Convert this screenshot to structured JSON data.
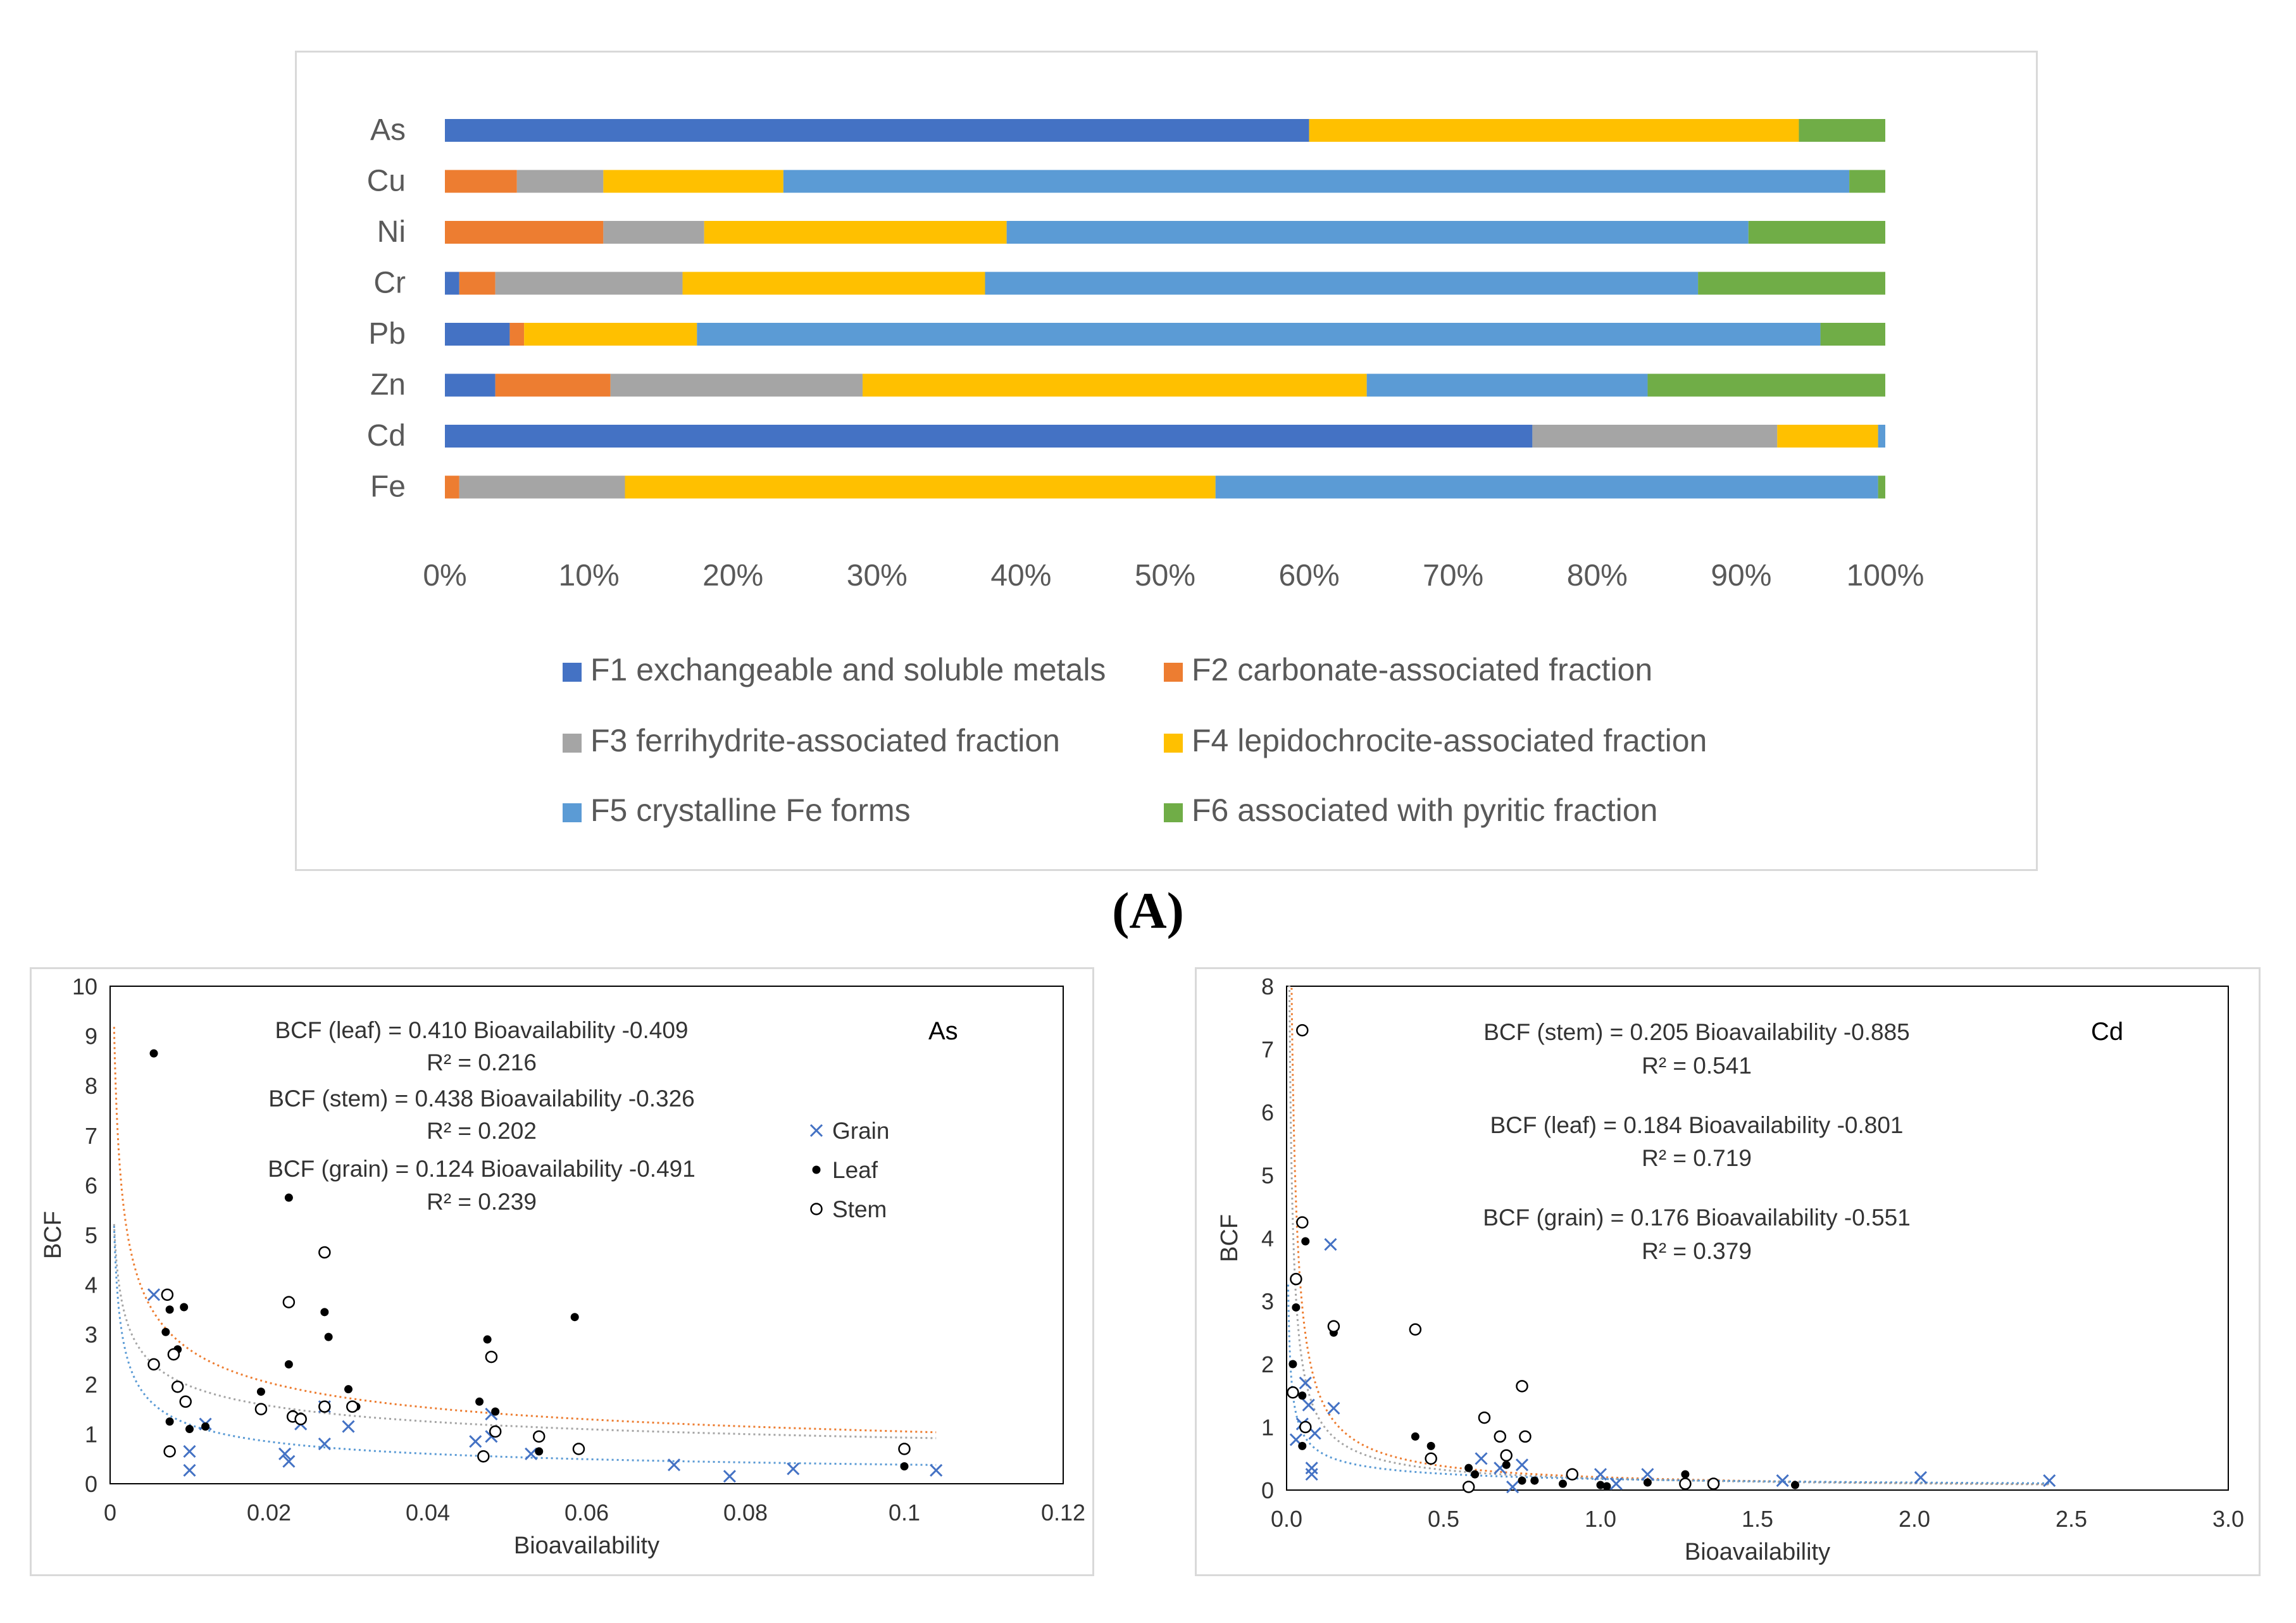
{
  "caption": "(A)",
  "chart_data": [
    {
      "type": "bar",
      "stacked": "100%",
      "orientation": "horizontal",
      "categories": [
        "As",
        "Cu",
        "Ni",
        "Cr",
        "Pb",
        "Zn",
        "Cd",
        "Fe"
      ],
      "series": [
        {
          "name": "F1 exchangeable and soluble metals",
          "color": "#4472c4",
          "values": [
            60,
            0,
            0,
            1,
            4.5,
            3.5,
            75.5,
            0
          ]
        },
        {
          "name": "F2 carbonate-associated fraction",
          "color": "#ed7d31",
          "values": [
            0,
            5,
            11,
            2.5,
            1,
            8,
            0,
            1
          ]
        },
        {
          "name": "F3 ferrihydrite-associated fraction",
          "color": "#a5a5a5",
          "values": [
            0,
            6,
            7,
            13,
            0,
            17.5,
            17,
            11.5
          ]
        },
        {
          "name": "F4 lepidochrocite-associated fraction",
          "color": "#ffc000",
          "values": [
            34,
            12.5,
            21,
            21,
            12,
            35,
            7,
            41
          ]
        },
        {
          "name": "F5 crystalline Fe forms",
          "color": "#5b9bd5",
          "values": [
            0,
            74,
            51.5,
            49.5,
            78,
            19.5,
            0.5,
            46
          ]
        },
        {
          "name": "F6 associated with pyritic fraction",
          "color": "#70ad47",
          "values": [
            6,
            2.5,
            9.5,
            13,
            4.5,
            16.5,
            0,
            0.5
          ]
        }
      ],
      "xlim": [
        0,
        100
      ],
      "xticks": [
        "0%",
        "10%",
        "20%",
        "30%",
        "40%",
        "50%",
        "60%",
        "70%",
        "80%",
        "90%",
        "100%"
      ],
      "legend": "bottom"
    },
    {
      "type": "scatter",
      "label": "As",
      "xlabel": "Bioavailability",
      "ylabel": "BCF",
      "xlim": [
        0,
        0.12
      ],
      "ylim": [
        0,
        10
      ],
      "xticks": [
        "0",
        "0.02",
        "0.04",
        "0.06",
        "0.08",
        "0.1",
        "0.12"
      ],
      "yticks": [
        "0",
        "1",
        "2",
        "3",
        "4",
        "5",
        "6",
        "7",
        "8",
        "9",
        "10"
      ],
      "legend_entries": [
        "Grain",
        "Leaf",
        "Stem"
      ],
      "annotations": [
        "BCF (leaf) = 0.410 Bioavailability -0.409",
        "R² = 0.216",
        "BCF (stem) = 0.438 Bioavailability -0.326",
        "R² = 0.202",
        "BCF (grain) = 0.124 Bioavailability -0.491",
        "R² = 0.239"
      ],
      "series": [
        {
          "name": "Grain",
          "marker": "x",
          "color": "#4472c4",
          "points": [
            [
              0.0055,
              3.8
            ],
            [
              0.01,
              0.65
            ],
            [
              0.01,
              0.27
            ],
            [
              0.012,
              1.2
            ],
            [
              0.022,
              0.6
            ],
            [
              0.0225,
              0.45
            ],
            [
              0.024,
              1.2
            ],
            [
              0.027,
              1.55
            ],
            [
              0.027,
              0.8
            ],
            [
              0.03,
              1.15
            ],
            [
              0.046,
              0.85
            ],
            [
              0.048,
              0.95
            ],
            [
              0.048,
              1.4
            ],
            [
              0.053,
              0.6
            ],
            [
              0.071,
              0.38
            ],
            [
              0.078,
              0.15
            ],
            [
              0.086,
              0.3
            ],
            [
              0.104,
              0.27
            ]
          ]
        },
        {
          "name": "Leaf",
          "marker": "dot",
          "color": "#000000",
          "points": [
            [
              0.0055,
              8.65
            ],
            [
              0.007,
              3.05
            ],
            [
              0.0075,
              3.5
            ],
            [
              0.0075,
              1.25
            ],
            [
              0.0085,
              2.7
            ],
            [
              0.0093,
              3.55
            ],
            [
              0.01,
              1.1
            ],
            [
              0.012,
              1.15
            ],
            [
              0.019,
              1.85
            ],
            [
              0.0225,
              5.75
            ],
            [
              0.0225,
              2.4
            ],
            [
              0.023,
              1.4
            ],
            [
              0.024,
              1.35
            ],
            [
              0.027,
              3.45
            ],
            [
              0.0275,
              2.95
            ],
            [
              0.03,
              1.9
            ],
            [
              0.031,
              1.55
            ],
            [
              0.0465,
              1.65
            ],
            [
              0.0475,
              2.9
            ],
            [
              0.0485,
              1.45
            ],
            [
              0.054,
              0.65
            ],
            [
              0.0585,
              3.35
            ],
            [
              0.1,
              0.35
            ]
          ]
        },
        {
          "name": "Stem",
          "marker": "circle",
          "color": "#000000",
          "points": [
            [
              0.0055,
              2.4
            ],
            [
              0.0072,
              3.8
            ],
            [
              0.0075,
              0.65
            ],
            [
              0.008,
              2.6
            ],
            [
              0.0085,
              1.95
            ],
            [
              0.0095,
              1.65
            ],
            [
              0.019,
              1.5
            ],
            [
              0.0225,
              3.65
            ],
            [
              0.023,
              1.35
            ],
            [
              0.024,
              1.3
            ],
            [
              0.027,
              4.65
            ],
            [
              0.027,
              1.55
            ],
            [
              0.0305,
              1.55
            ],
            [
              0.047,
              0.55
            ],
            [
              0.048,
              2.55
            ],
            [
              0.0485,
              1.05
            ],
            [
              0.054,
              0.95
            ],
            [
              0.059,
              0.7
            ],
            [
              0.1,
              0.7
            ]
          ]
        }
      ],
      "fits": [
        {
          "name": "leaf",
          "a": 0.41,
          "b": -0.409,
          "color": "#ed7d31"
        },
        {
          "name": "stem",
          "a": 0.438,
          "b": -0.326,
          "color": "#a5a5a5"
        },
        {
          "name": "grain",
          "a": 0.124,
          "b": -0.491,
          "color": "#5b9bd5"
        }
      ],
      "fit_range": [
        0.0005,
        0.104
      ]
    },
    {
      "type": "scatter",
      "label": "Cd",
      "xlabel": "Bioavailability",
      "ylabel": "BCF",
      "xlim": [
        0,
        3.0
      ],
      "ylim": [
        0,
        8
      ],
      "xticks": [
        "0.0",
        "0.5",
        "1.0",
        "1.5",
        "2.0",
        "2.5",
        "3.0"
      ],
      "yticks": [
        "0",
        "1",
        "2",
        "3",
        "4",
        "5",
        "6",
        "7",
        "8"
      ],
      "annotations": [
        "BCF (stem) = 0.205 Bioavailability -0.885",
        "R² = 0.541",
        "BCF (leaf) = 0.184 Bioavailability -0.801",
        "R² = 0.719",
        "BCF (grain) = 0.176 Bioavailability -0.551",
        "R² = 0.379"
      ],
      "series": [
        {
          "name": "Grain",
          "marker": "x",
          "color": "#4472c4",
          "points": [
            [
              0.03,
              0.8
            ],
            [
              0.05,
              1.05
            ],
            [
              0.06,
              1.7
            ],
            [
              0.07,
              1.35
            ],
            [
              0.08,
              0.35
            ],
            [
              0.08,
              0.25
            ],
            [
              0.09,
              0.9
            ],
            [
              0.14,
              3.9
            ],
            [
              0.15,
              1.3
            ],
            [
              0.62,
              0.5
            ],
            [
              0.68,
              0.35
            ],
            [
              0.72,
              0.05
            ],
            [
              0.75,
              0.4
            ],
            [
              1.0,
              0.25
            ],
            [
              1.05,
              0.1
            ],
            [
              1.15,
              0.25
            ],
            [
              1.58,
              0.15
            ],
            [
              2.02,
              0.2
            ],
            [
              2.43,
              0.15
            ]
          ]
        },
        {
          "name": "Leaf",
          "marker": "dot",
          "color": "#000000",
          "points": [
            [
              0.02,
              2.0
            ],
            [
              0.03,
              2.9
            ],
            [
              0.05,
              1.5
            ],
            [
              0.05,
              0.7
            ],
            [
              0.06,
              3.95
            ],
            [
              0.15,
              2.5
            ],
            [
              0.41,
              0.85
            ],
            [
              0.46,
              0.7
            ],
            [
              0.58,
              0.35
            ],
            [
              0.6,
              0.25
            ],
            [
              0.7,
              0.4
            ],
            [
              0.75,
              0.15
            ],
            [
              0.79,
              0.15
            ],
            [
              0.88,
              0.1
            ],
            [
              1.0,
              0.08
            ],
            [
              1.02,
              0.06
            ],
            [
              1.15,
              0.12
            ],
            [
              1.27,
              0.25
            ],
            [
              1.62,
              0.08
            ]
          ]
        },
        {
          "name": "Stem",
          "marker": "circle",
          "color": "#000000",
          "points": [
            [
              0.02,
              1.55
            ],
            [
              0.03,
              3.35
            ],
            [
              0.05,
              7.3
            ],
            [
              0.05,
              4.25
            ],
            [
              0.06,
              1.0
            ],
            [
              0.15,
              2.6
            ],
            [
              0.41,
              2.55
            ],
            [
              0.46,
              0.5
            ],
            [
              0.58,
              0.05
            ],
            [
              0.63,
              1.15
            ],
            [
              0.68,
              0.85
            ],
            [
              0.7,
              0.55
            ],
            [
              0.75,
              1.65
            ],
            [
              0.76,
              0.85
            ],
            [
              0.91,
              0.25
            ],
            [
              1.27,
              0.1
            ],
            [
              1.36,
              0.1
            ]
          ]
        }
      ],
      "fits": [
        {
          "name": "stem",
          "a": 0.205,
          "b": -0.885,
          "color": "#ed7d31"
        },
        {
          "name": "leaf",
          "a": 0.184,
          "b": -0.801,
          "color": "#a5a5a5"
        },
        {
          "name": "grain",
          "a": 0.176,
          "b": -0.551,
          "color": "#5b9bd5"
        }
      ],
      "fit_range": [
        0.005,
        2.43
      ]
    }
  ]
}
